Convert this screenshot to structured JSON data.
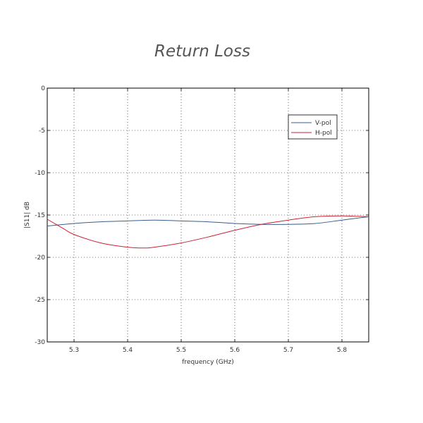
{
  "chart_data": {
    "type": "line",
    "title": "Return Loss",
    "xlabel": "frequency (GHz)",
    "ylabel": "|S11| dB",
    "xlim": [
      5.25,
      5.85
    ],
    "ylim": [
      -30,
      0
    ],
    "xticks": [
      "5.3",
      "5.4",
      "5.5",
      "5.6",
      "5.7",
      "5.8"
    ],
    "yticks": [
      "0",
      "-5",
      "-10",
      "-15",
      "-20",
      "-25",
      "-30"
    ],
    "grid": true,
    "legend_position": "top-right",
    "series": [
      {
        "name": "V-pol",
        "color": "#3a5f8a",
        "x": [
          5.25,
          5.3,
          5.35,
          5.4,
          5.45,
          5.5,
          5.55,
          5.6,
          5.65,
          5.7,
          5.75,
          5.8,
          5.85
        ],
        "y": [
          -16.3,
          -16.0,
          -15.8,
          -15.7,
          -15.6,
          -15.7,
          -15.8,
          -16.0,
          -16.1,
          -16.1,
          -16.0,
          -15.6,
          -15.2
        ]
      },
      {
        "name": "H-pol",
        "color": "#cc2233",
        "x": [
          5.25,
          5.28,
          5.3,
          5.35,
          5.4,
          5.43,
          5.45,
          5.5,
          5.55,
          5.6,
          5.65,
          5.7,
          5.75,
          5.8,
          5.85
        ],
        "y": [
          -15.5,
          -16.6,
          -17.3,
          -18.3,
          -18.8,
          -18.9,
          -18.8,
          -18.3,
          -17.6,
          -16.8,
          -16.1,
          -15.6,
          -15.2,
          -15.1,
          -15.2
        ]
      }
    ]
  }
}
